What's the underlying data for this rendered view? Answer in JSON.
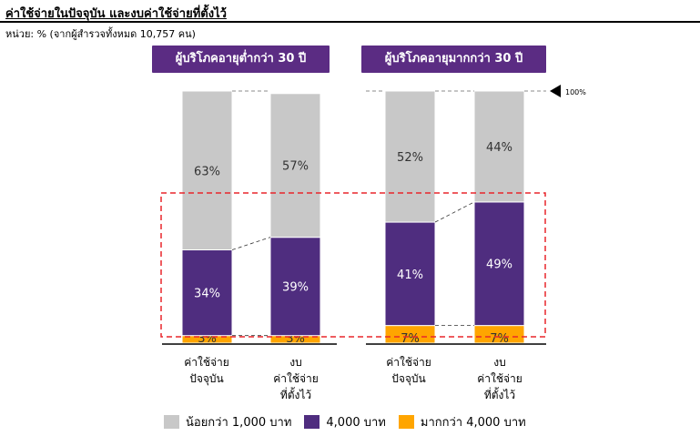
{
  "title": "ค่าใช้จ่ายในปัจจุบัน และงบค่าใช้จ่ายที่ตั้งไว้",
  "unit_note": "หน่วย: % (จากผู้สำรวจทั้งหมด 10,757 คน)",
  "colors": {
    "low": "#c8c8c8",
    "mid": "#4f2d7f",
    "high": "#ffa500",
    "group_label_bg": "#5b2c83",
    "highlight": "#e8262b"
  },
  "chart_data": {
    "type": "bar",
    "stacked": true,
    "ylim": [
      0,
      100
    ],
    "reference_line_label": "100%",
    "groups": [
      {
        "label": "ผู้บริโภคอายุต่ำกว่า 30 ปี",
        "categories": [
          "ค่าใช้จ่าย\nปัจจุบัน",
          "งบ\nค่าใช้จ่าย\nที่ตั้งไว้"
        ]
      },
      {
        "label": "ผู้บริโภคอายุมากกว่า 30 ปี",
        "categories": [
          "ค่าใช้จ่าย\nปัจจุบัน",
          "งบ\nค่าใช้จ่าย\nที่ตั้งไว้"
        ]
      }
    ],
    "series": [
      {
        "name": "มากกว่า 4,000 บาท",
        "color_key": "high",
        "values": [
          3,
          3,
          7,
          7
        ]
      },
      {
        "name": "4,000 บาท",
        "color_key": "mid",
        "values": [
          34,
          39,
          41,
          49
        ]
      },
      {
        "name": "น้อยกว่า 1,000 บาท",
        "color_key": "low",
        "values": [
          63,
          57,
          52,
          44
        ]
      }
    ],
    "data_labels": [
      [
        "3%",
        "34%",
        "63%"
      ],
      [
        "3%",
        "39%",
        "57%"
      ],
      [
        "7%",
        "41%",
        "52%"
      ],
      [
        "7%",
        "49%",
        "44%"
      ]
    ],
    "legend": [
      {
        "label": "น้อยกว่า 1,000 บาท",
        "color_key": "low"
      },
      {
        "label": "4,000 บาท",
        "color_key": "mid"
      },
      {
        "label": "มากกว่า 4,000 บาท",
        "color_key": "high"
      }
    ]
  }
}
